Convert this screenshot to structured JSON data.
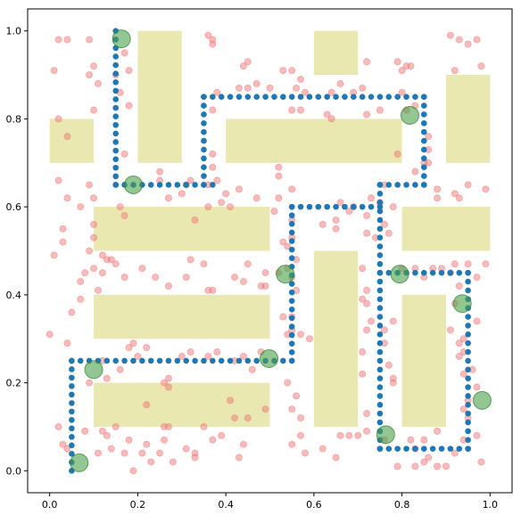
{
  "chart_data": {
    "type": "scatter",
    "title": "",
    "xlabel": "",
    "ylabel": "",
    "xlim": [
      -0.05,
      1.05
    ],
    "ylim": [
      -0.05,
      1.05
    ],
    "grid": false,
    "x_ticks": [
      0.0,
      0.2,
      0.4,
      0.6,
      0.8,
      1.0
    ],
    "y_ticks": [
      0.0,
      0.2,
      0.4,
      0.6,
      0.8,
      1.0
    ],
    "x_tick_labels": [
      "0.0",
      "0.2",
      "0.4",
      "0.6",
      "0.8",
      "1.0"
    ],
    "y_tick_labels": [
      "0.0",
      "0.2",
      "0.4",
      "0.6",
      "0.8",
      "1.0"
    ],
    "colors": {
      "obstacle": "#e8e8b0",
      "sample": "#f27878",
      "path": "#1f77b4",
      "waypoint": "#4aa04a"
    },
    "obstacles": [
      {
        "x": [
          0.0,
          0.1
        ],
        "y": [
          0.7,
          0.8
        ]
      },
      {
        "x": [
          0.2,
          0.3
        ],
        "y": [
          0.7,
          1.0
        ]
      },
      {
        "x": [
          0.4,
          0.8
        ],
        "y": [
          0.7,
          0.8
        ]
      },
      {
        "x": [
          0.6,
          0.7
        ],
        "y": [
          0.9,
          1.0
        ]
      },
      {
        "x": [
          0.9,
          1.0
        ],
        "y": [
          0.7,
          0.9
        ]
      },
      {
        "x": [
          0.1,
          0.5
        ],
        "y": [
          0.5,
          0.6
        ]
      },
      {
        "x": [
          0.8,
          1.0
        ],
        "y": [
          0.5,
          0.6
        ]
      },
      {
        "x": [
          0.1,
          0.5
        ],
        "y": [
          0.3,
          0.4
        ]
      },
      {
        "x": [
          0.6,
          0.7
        ],
        "y": [
          0.1,
          0.5
        ]
      },
      {
        "x": [
          0.8,
          0.9
        ],
        "y": [
          0.1,
          0.4
        ]
      },
      {
        "x": [
          0.1,
          0.5
        ],
        "y": [
          0.1,
          0.2
        ]
      }
    ],
    "waypoints": [
      {
        "x": 0.163,
        "y": 0.982
      },
      {
        "x": 0.19,
        "y": 0.65
      },
      {
        "x": 0.818,
        "y": 0.808
      },
      {
        "x": 0.535,
        "y": 0.447
      },
      {
        "x": 0.795,
        "y": 0.447
      },
      {
        "x": 0.937,
        "y": 0.38
      },
      {
        "x": 0.1,
        "y": 0.23
      },
      {
        "x": 0.498,
        "y": 0.255
      },
      {
        "x": 0.982,
        "y": 0.16
      },
      {
        "x": 0.763,
        "y": 0.082
      },
      {
        "x": 0.067,
        "y": 0.018
      }
    ],
    "path_segments": [
      {
        "x": [
          0.15,
          0.15
        ],
        "y": [
          1.0,
          0.65
        ]
      },
      {
        "x": [
          0.15,
          0.37
        ],
        "y": [
          0.65,
          0.65
        ]
      },
      {
        "x": [
          0.35,
          0.35
        ],
        "y": [
          0.65,
          0.85
        ]
      },
      {
        "x": [
          0.35,
          0.85
        ],
        "y": [
          0.85,
          0.85
        ]
      },
      {
        "x": [
          0.85,
          0.85
        ],
        "y": [
          0.85,
          0.65
        ]
      },
      {
        "x": [
          0.85,
          0.75
        ],
        "y": [
          0.65,
          0.65
        ]
      },
      {
        "x": [
          0.75,
          0.55
        ],
        "y": [
          0.6,
          0.6
        ]
      },
      {
        "x": [
          0.55,
          0.55
        ],
        "y": [
          0.6,
          0.25
        ]
      },
      {
        "x": [
          0.75,
          0.75
        ],
        "y": [
          0.65,
          0.05
        ]
      },
      {
        "x": [
          0.75,
          0.95
        ],
        "y": [
          0.45,
          0.45
        ]
      },
      {
        "x": [
          0.95,
          0.95
        ],
        "y": [
          0.45,
          0.05
        ]
      },
      {
        "x": [
          0.75,
          0.95
        ],
        "y": [
          0.05,
          0.05
        ]
      },
      {
        "x": [
          0.55,
          0.05
        ],
        "y": [
          0.25,
          0.25
        ]
      },
      {
        "x": [
          0.05,
          0.05
        ],
        "y": [
          0.25,
          0.0
        ]
      }
    ],
    "samples": [
      [
        0.01,
        0.91
      ],
      [
        0.04,
        0.98
      ],
      [
        0.02,
        0.98
      ],
      [
        0.09,
        0.98
      ],
      [
        0.1,
        0.92
      ],
      [
        0.09,
        0.9
      ],
      [
        0.11,
        0.88
      ],
      [
        0.1,
        0.82
      ],
      [
        0.02,
        0.8
      ],
      [
        0.04,
        0.76
      ],
      [
        0.02,
        0.66
      ],
      [
        0.04,
        0.62
      ],
      [
        0.07,
        0.6
      ],
      [
        0.09,
        0.65
      ],
      [
        0.1,
        0.62
      ],
      [
        0.03,
        0.55
      ],
      [
        0.03,
        0.52
      ],
      [
        0.01,
        0.49
      ],
      [
        0.1,
        0.56
      ],
      [
        0.1,
        0.53
      ],
      [
        0.09,
        0.5
      ],
      [
        0.1,
        0.46
      ],
      [
        0.08,
        0.45
      ],
      [
        0.07,
        0.43
      ],
      [
        0.07,
        0.39
      ],
      [
        0.05,
        0.36
      ],
      [
        0.0,
        0.31
      ],
      [
        0.04,
        0.29
      ],
      [
        0.09,
        0.2
      ],
      [
        0.12,
        0.25
      ],
      [
        0.13,
        0.21
      ],
      [
        0.02,
        0.1
      ],
      [
        0.03,
        0.06
      ],
      [
        0.08,
        0.09
      ],
      [
        0.12,
        0.09
      ],
      [
        0.13,
        0.08
      ],
      [
        0.15,
        0.1
      ],
      [
        0.14,
        0.05
      ],
      [
        0.04,
        0.05
      ],
      [
        0.17,
        0.04
      ],
      [
        0.11,
        0.04
      ],
      [
        0.18,
        0.28
      ],
      [
        0.19,
        0.29
      ],
      [
        0.16,
        0.23
      ],
      [
        0.2,
        0.26
      ],
      [
        0.22,
        0.28
      ],
      [
        0.27,
        0.19
      ],
      [
        0.26,
        0.1
      ],
      [
        0.27,
        0.21
      ],
      [
        0.3,
        0.26
      ],
      [
        0.32,
        0.27
      ],
      [
        0.36,
        0.26
      ],
      [
        0.38,
        0.27
      ],
      [
        0.42,
        0.25
      ],
      [
        0.44,
        0.26
      ],
      [
        0.46,
        0.23
      ],
      [
        0.48,
        0.27
      ],
      [
        0.45,
        0.12
      ],
      [
        0.43,
        0.03
      ],
      [
        0.44,
        0.06
      ],
      [
        0.35,
        0.1
      ],
      [
        0.31,
        0.05
      ],
      [
        0.33,
        0.03
      ],
      [
        0.28,
        0.02
      ],
      [
        0.23,
        0.02
      ],
      [
        0.22,
        0.06
      ],
      [
        0.21,
        0.04
      ],
      [
        0.19,
        0.0
      ],
      [
        0.22,
        0.15
      ],
      [
        0.42,
        0.12
      ],
      [
        0.18,
        0.83
      ],
      [
        0.16,
        0.86
      ],
      [
        0.18,
        0.91
      ],
      [
        0.17,
        0.95
      ],
      [
        0.15,
        0.9
      ],
      [
        0.25,
        0.68
      ],
      [
        0.17,
        0.72
      ],
      [
        0.17,
        0.58
      ],
      [
        0.16,
        0.6
      ],
      [
        0.25,
        0.66
      ],
      [
        0.32,
        0.66
      ],
      [
        0.31,
        0.65
      ],
      [
        0.36,
        0.65
      ],
      [
        0.39,
        0.61
      ],
      [
        0.38,
        0.66
      ],
      [
        0.37,
        0.69
      ],
      [
        0.37,
        0.72
      ],
      [
        0.37,
        0.82
      ],
      [
        0.38,
        0.86
      ],
      [
        0.37,
        0.97
      ],
      [
        0.36,
        0.99
      ],
      [
        0.37,
        0.98
      ],
      [
        0.44,
        0.92
      ],
      [
        0.45,
        0.93
      ],
      [
        0.43,
        0.87
      ],
      [
        0.47,
        0.88
      ],
      [
        0.45,
        0.87
      ],
      [
        0.5,
        0.87
      ],
      [
        0.53,
        0.91
      ],
      [
        0.55,
        0.91
      ],
      [
        0.57,
        0.89
      ],
      [
        0.56,
        0.87
      ],
      [
        0.55,
        0.82
      ],
      [
        0.57,
        0.82
      ],
      [
        0.58,
        0.86
      ],
      [
        0.64,
        0.86
      ],
      [
        0.63,
        0.81
      ],
      [
        0.64,
        0.8
      ],
      [
        0.66,
        0.88
      ],
      [
        0.69,
        0.86
      ],
      [
        0.71,
        0.87
      ],
      [
        0.72,
        0.93
      ],
      [
        0.79,
        0.93
      ],
      [
        0.8,
        0.91
      ],
      [
        0.81,
        0.92
      ],
      [
        0.82,
        0.92
      ],
      [
        0.8,
        0.86
      ],
      [
        0.81,
        0.82
      ],
      [
        0.75,
        0.82
      ],
      [
        0.72,
        0.81
      ],
      [
        0.79,
        0.72
      ],
      [
        0.83,
        0.68
      ],
      [
        0.85,
        0.7
      ],
      [
        0.88,
        0.64
      ],
      [
        0.88,
        0.62
      ],
      [
        0.92,
        0.63
      ],
      [
        0.93,
        0.62
      ],
      [
        0.95,
        0.65
      ],
      [
        0.99,
        0.64
      ],
      [
        0.93,
        0.98
      ],
      [
        0.95,
        0.97
      ],
      [
        0.97,
        0.98
      ],
      [
        0.91,
        0.99
      ],
      [
        0.98,
        0.92
      ],
      [
        0.92,
        0.91
      ],
      [
        0.86,
        0.7
      ],
      [
        0.86,
        0.73
      ],
      [
        0.86,
        0.76
      ],
      [
        0.83,
        0.83
      ],
      [
        0.52,
        0.69
      ],
      [
        0.52,
        0.67
      ],
      [
        0.55,
        0.64
      ],
      [
        0.52,
        0.62
      ],
      [
        0.55,
        0.57
      ],
      [
        0.53,
        0.52
      ],
      [
        0.55,
        0.53
      ],
      [
        0.54,
        0.51
      ],
      [
        0.56,
        0.48
      ],
      [
        0.52,
        0.45
      ],
      [
        0.55,
        0.44
      ],
      [
        0.54,
        0.46
      ],
      [
        0.56,
        0.41
      ],
      [
        0.55,
        0.35
      ],
      [
        0.53,
        0.35
      ],
      [
        0.54,
        0.31
      ],
      [
        0.55,
        0.32
      ],
      [
        0.57,
        0.31
      ],
      [
        0.59,
        0.3
      ],
      [
        0.54,
        0.2
      ],
      [
        0.56,
        0.17
      ],
      [
        0.55,
        0.14
      ],
      [
        0.57,
        0.12
      ],
      [
        0.57,
        0.08
      ],
      [
        0.55,
        0.06
      ],
      [
        0.58,
        0.04
      ],
      [
        0.62,
        0.05
      ],
      [
        0.65,
        0.03
      ],
      [
        0.66,
        0.08
      ],
      [
        0.68,
        0.08
      ],
      [
        0.7,
        0.08
      ],
      [
        0.72,
        0.09
      ],
      [
        0.72,
        0.13
      ],
      [
        0.71,
        0.22
      ],
      [
        0.71,
        0.27
      ],
      [
        0.73,
        0.34
      ],
      [
        0.72,
        0.32
      ],
      [
        0.72,
        0.41
      ],
      [
        0.71,
        0.46
      ],
      [
        0.72,
        0.54
      ],
      [
        0.72,
        0.58
      ],
      [
        0.74,
        0.53
      ],
      [
        0.77,
        0.54
      ],
      [
        0.75,
        0.61
      ],
      [
        0.69,
        0.6
      ],
      [
        0.68,
        0.59
      ],
      [
        0.66,
        0.61
      ],
      [
        0.65,
        0.57
      ],
      [
        0.65,
        0.55
      ],
      [
        0.62,
        0.56
      ],
      [
        0.73,
        0.62
      ],
      [
        0.76,
        0.65
      ],
      [
        0.78,
        0.6
      ],
      [
        0.76,
        0.56
      ],
      [
        0.8,
        0.46
      ],
      [
        0.83,
        0.46
      ],
      [
        0.85,
        0.44
      ],
      [
        0.87,
        0.46
      ],
      [
        0.89,
        0.46
      ],
      [
        0.91,
        0.45
      ],
      [
        0.92,
        0.47
      ],
      [
        0.95,
        0.47
      ],
      [
        0.99,
        0.47
      ],
      [
        0.97,
        0.44
      ],
      [
        0.93,
        0.42
      ],
      [
        0.92,
        0.38
      ],
      [
        0.97,
        0.34
      ],
      [
        0.91,
        0.32
      ],
      [
        0.93,
        0.29
      ],
      [
        0.94,
        0.3
      ],
      [
        0.94,
        0.27
      ],
      [
        0.96,
        0.23
      ],
      [
        0.93,
        0.26
      ],
      [
        0.94,
        0.22
      ],
      [
        0.97,
        0.19
      ],
      [
        0.95,
        0.16
      ],
      [
        0.94,
        0.14
      ],
      [
        0.95,
        0.12
      ],
      [
        0.97,
        0.08
      ],
      [
        0.98,
        0.02
      ],
      [
        0.94,
        0.07
      ],
      [
        0.92,
        0.04
      ],
      [
        0.88,
        0.09
      ],
      [
        0.85,
        0.07
      ],
      [
        0.86,
        0.03
      ],
      [
        0.83,
        0.05
      ],
      [
        0.82,
        0.07
      ],
      [
        0.76,
        0.07
      ],
      [
        0.79,
        0.01
      ],
      [
        0.83,
        0.01
      ],
      [
        0.85,
        0.02
      ],
      [
        0.88,
        0.01
      ],
      [
        0.9,
        0.01
      ],
      [
        0.78,
        0.2
      ],
      [
        0.78,
        0.21
      ],
      [
        0.77,
        0.24
      ],
      [
        0.76,
        0.29
      ],
      [
        0.76,
        0.32
      ],
      [
        0.78,
        0.34
      ],
      [
        0.72,
        0.38
      ],
      [
        0.71,
        0.39
      ],
      [
        0.44,
        0.43
      ],
      [
        0.45,
        0.47
      ],
      [
        0.49,
        0.42
      ],
      [
        0.49,
        0.45
      ],
      [
        0.48,
        0.42
      ],
      [
        0.42,
        0.44
      ],
      [
        0.37,
        0.41
      ],
      [
        0.36,
        0.41
      ],
      [
        0.31,
        0.44
      ],
      [
        0.27,
        0.42
      ],
      [
        0.24,
        0.44
      ],
      [
        0.21,
        0.46
      ],
      [
        0.17,
        0.44
      ],
      [
        0.13,
        0.48
      ],
      [
        0.15,
        0.47
      ],
      [
        0.12,
        0.45
      ],
      [
        0.11,
        0.41
      ],
      [
        0.12,
        0.49
      ],
      [
        0.14,
        0.48
      ],
      [
        0.32,
        0.48
      ],
      [
        0.35,
        0.47
      ],
      [
        0.4,
        0.63
      ],
      [
        0.43,
        0.64
      ],
      [
        0.47,
        0.62
      ],
      [
        0.51,
        0.59
      ],
      [
        0.33,
        0.57
      ],
      [
        0.3,
        0.63
      ],
      [
        0.27,
        0.62
      ],
      [
        0.36,
        0.6
      ],
      [
        0.41,
        0.6
      ],
      [
        0.26,
        0.2
      ],
      [
        0.27,
        0.1
      ],
      [
        0.49,
        0.14
      ],
      [
        0.41,
        0.16
      ],
      [
        0.39,
        0.08
      ],
      [
        0.37,
        0.07
      ],
      [
        0.33,
        0.04
      ],
      [
        0.25,
        0.04
      ],
      [
        0.26,
        0.07
      ],
      [
        0.18,
        0.07
      ]
    ]
  }
}
